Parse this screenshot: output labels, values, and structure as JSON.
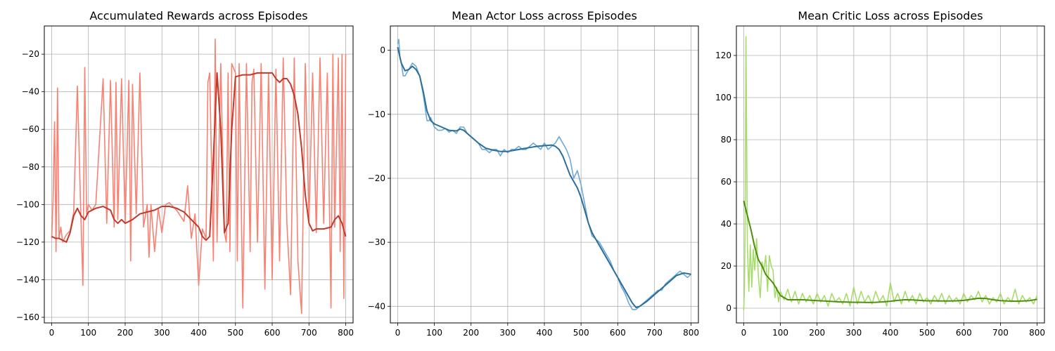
{
  "chart_data": [
    {
      "type": "line",
      "title": "Accumulated Rewards across Episodes",
      "xlabel": "",
      "ylabel": "",
      "xlim": [
        -20,
        820
      ],
      "ylim": [
        -163,
        -5
      ],
      "xticks": [
        0,
        100,
        200,
        300,
        400,
        500,
        600,
        700,
        800
      ],
      "yticks": [
        -160,
        -140,
        -120,
        -100,
        -80,
        -60,
        -40,
        -20
      ],
      "grid": true,
      "raw_color": "#fa8072",
      "smooth_color": "#c0392b",
      "series": [
        {
          "role": "raw",
          "x": [
            0,
            4,
            8,
            12,
            16,
            20,
            25,
            30,
            40,
            50,
            60,
            70,
            80,
            85,
            90,
            95,
            100,
            110,
            120,
            140,
            150,
            160,
            170,
            175,
            180,
            190,
            200,
            210,
            215,
            220,
            230,
            240,
            250,
            260,
            265,
            270,
            280,
            290,
            300,
            310,
            320,
            340,
            360,
            370,
            380,
            390,
            400,
            410,
            420,
            425,
            430,
            440,
            445,
            450,
            460,
            470,
            475,
            480,
            485,
            490,
            500,
            505,
            510,
            520,
            530,
            540,
            545,
            550,
            560,
            570,
            580,
            590,
            600,
            610,
            620,
            630,
            640,
            650,
            660,
            670,
            680,
            690,
            700,
            710,
            720,
            730,
            740,
            750,
            760,
            765,
            770,
            780,
            785,
            790,
            795,
            800
          ],
          "y": [
            -118,
            -97,
            -56,
            -125,
            -38,
            -118,
            -112,
            -120,
            -116,
            -114,
            -104,
            -37,
            -110,
            -143,
            -27,
            -105,
            -100,
            -103,
            -100,
            -33,
            -110,
            -34,
            -112,
            -35,
            -108,
            -33,
            -110,
            -34,
            -130,
            -36,
            -105,
            -30,
            -112,
            -100,
            -128,
            -100,
            -125,
            -102,
            -115,
            -100,
            -99,
            -103,
            -109,
            -90,
            -118,
            -105,
            -143,
            -113,
            -118,
            -35,
            -30,
            -130,
            -12,
            -120,
            -25,
            -115,
            -120,
            -30,
            -125,
            -25,
            -30,
            -130,
            -25,
            -155,
            -25,
            -125,
            -35,
            -28,
            -120,
            -25,
            -145,
            -30,
            -140,
            -28,
            -130,
            -22,
            -110,
            -148,
            -22,
            -130,
            -158,
            -25,
            -110,
            -30,
            -115,
            -22,
            -110,
            -30,
            -155,
            -20,
            -112,
            -22,
            -125,
            -20,
            -150,
            -20
          ]
        },
        {
          "role": "smoothed",
          "x": [
            0,
            10,
            20,
            30,
            40,
            50,
            60,
            70,
            80,
            90,
            100,
            120,
            140,
            160,
            170,
            180,
            190,
            200,
            220,
            240,
            260,
            280,
            300,
            320,
            340,
            360,
            380,
            400,
            410,
            420,
            430,
            440,
            450,
            460,
            470,
            480,
            490,
            500,
            520,
            540,
            560,
            580,
            600,
            610,
            620,
            630,
            640,
            650,
            660,
            670,
            680,
            690,
            700,
            710,
            720,
            740,
            760,
            770,
            780,
            790,
            800
          ],
          "y": [
            -117,
            -118,
            -118,
            -119,
            -120,
            -115,
            -106,
            -102,
            -106,
            -108,
            -104,
            -102,
            -101,
            -103,
            -108,
            -110,
            -108,
            -110,
            -108,
            -105,
            -104,
            -103,
            -101,
            -101,
            -102,
            -104,
            -108,
            -112,
            -117,
            -119,
            -117,
            -75,
            -30,
            -60,
            -115,
            -110,
            -60,
            -32,
            -31,
            -31,
            -30,
            -30,
            -30,
            -33,
            -35,
            -33,
            -33,
            -36,
            -42,
            -52,
            -70,
            -95,
            -110,
            -114,
            -113,
            -113,
            -112,
            -108,
            -106,
            -110,
            -117
          ]
        }
      ]
    },
    {
      "type": "line",
      "title": "Mean Actor Loss across Episodes",
      "xlabel": "",
      "ylabel": "",
      "xlim": [
        -20,
        820
      ],
      "ylim": [
        -42.6,
        3.8
      ],
      "xticks": [
        0,
        100,
        200,
        300,
        400,
        500,
        600,
        700,
        800
      ],
      "yticks": [
        -40,
        -30,
        -20,
        -10,
        0
      ],
      "grid": true,
      "raw_color": "#6ea8d4",
      "smooth_color": "#2b6f99",
      "series": [
        {
          "role": "raw",
          "x": [
            0,
            3,
            6,
            10,
            15,
            20,
            30,
            40,
            50,
            60,
            70,
            75,
            80,
            85,
            90,
            100,
            110,
            120,
            130,
            140,
            150,
            160,
            170,
            180,
            190,
            200,
            210,
            220,
            230,
            240,
            250,
            260,
            270,
            280,
            290,
            300,
            310,
            320,
            330,
            340,
            350,
            360,
            370,
            380,
            390,
            400,
            410,
            420,
            430,
            440,
            450,
            460,
            470,
            480,
            490,
            500,
            510,
            520,
            530,
            540,
            550,
            560,
            570,
            580,
            590,
            600,
            610,
            620,
            630,
            640,
            650,
            660,
            670,
            680,
            690,
            700,
            710,
            720,
            730,
            740,
            750,
            760,
            770,
            780,
            790,
            800
          ],
          "y": [
            1,
            1.7,
            -1,
            -2,
            -4,
            -4,
            -3,
            -2,
            -2.5,
            -4,
            -7,
            -9,
            -11,
            -11,
            -10.5,
            -12,
            -12.5,
            -12.5,
            -12.2,
            -12.8,
            -12.5,
            -13,
            -12,
            -12,
            -13,
            -13.5,
            -14,
            -14.5,
            -15.5,
            -15.5,
            -16,
            -15.5,
            -15.5,
            -16.5,
            -15.5,
            -16,
            -15.5,
            -15.5,
            -15,
            -15.5,
            -15.5,
            -15,
            -14.5,
            -15,
            -15.5,
            -14.5,
            -15.5,
            -15,
            -14.5,
            -13.5,
            -14.5,
            -15.5,
            -17,
            -20,
            -18.8,
            -21,
            -24,
            -27,
            -29,
            -29.5,
            -30,
            -31,
            -32,
            -33,
            -34.5,
            -35.5,
            -37,
            -38,
            -39.5,
            -40.5,
            -40.5,
            -40,
            -39.5,
            -39,
            -38.5,
            -38,
            -37.5,
            -37.5,
            -36.5,
            -36,
            -35.5,
            -35,
            -34.5,
            -35,
            -35.5,
            -35
          ]
        },
        {
          "role": "smoothed",
          "x": [
            0,
            10,
            20,
            30,
            40,
            50,
            60,
            70,
            80,
            90,
            100,
            120,
            140,
            160,
            170,
            180,
            200,
            220,
            240,
            260,
            280,
            300,
            320,
            340,
            360,
            380,
            400,
            420,
            430,
            440,
            450,
            460,
            470,
            480,
            490,
            500,
            510,
            520,
            530,
            540,
            560,
            580,
            600,
            620,
            640,
            650,
            660,
            680,
            700,
            720,
            740,
            760,
            780,
            800
          ],
          "y": [
            0.5,
            -2,
            -3.2,
            -3,
            -2.5,
            -3,
            -4,
            -6.5,
            -9.5,
            -11,
            -11.5,
            -12,
            -12.5,
            -12.6,
            -12.3,
            -12.5,
            -13.5,
            -14.5,
            -15.3,
            -15.6,
            -15.8,
            -15.8,
            -15.6,
            -15.4,
            -15.2,
            -15.0,
            -14.9,
            -14.8,
            -15.0,
            -15.5,
            -16.5,
            -18,
            -19.5,
            -20.5,
            -21.5,
            -23,
            -25,
            -27,
            -28.5,
            -29.5,
            -31.5,
            -33.5,
            -35.5,
            -37.5,
            -39.5,
            -40.2,
            -40,
            -39.2,
            -38.2,
            -37.2,
            -36.2,
            -35.2,
            -34.8,
            -35
          ]
        }
      ]
    },
    {
      "type": "line",
      "title": "Mean Critic Loss across Episodes",
      "xlabel": "",
      "ylabel": "",
      "xlim": [
        -20,
        820
      ],
      "ylim": [
        -7,
        134
      ],
      "xticks": [
        0,
        100,
        200,
        300,
        400,
        500,
        600,
        700,
        800
      ],
      "yticks": [
        0,
        20,
        40,
        60,
        80,
        100,
        120
      ],
      "grid": true,
      "raw_color": "#a8dc6a",
      "smooth_color": "#4d8f0e",
      "series": [
        {
          "role": "raw",
          "x": [
            0,
            2,
            4,
            6,
            8,
            10,
            14,
            18,
            22,
            26,
            30,
            35,
            40,
            45,
            50,
            55,
            60,
            65,
            70,
            75,
            80,
            85,
            90,
            95,
            100,
            110,
            120,
            130,
            140,
            150,
            160,
            170,
            180,
            190,
            200,
            210,
            220,
            230,
            240,
            250,
            260,
            270,
            280,
            290,
            300,
            310,
            320,
            330,
            340,
            350,
            360,
            370,
            380,
            390,
            400,
            410,
            420,
            430,
            440,
            450,
            460,
            470,
            480,
            490,
            500,
            510,
            520,
            530,
            540,
            550,
            560,
            570,
            580,
            590,
            600,
            610,
            620,
            630,
            640,
            650,
            660,
            670,
            680,
            690,
            700,
            710,
            720,
            730,
            740,
            750,
            760,
            770,
            780,
            790,
            800
          ],
          "y": [
            -1,
            10,
            40,
            129,
            80,
            30,
            8,
            30,
            10,
            28,
            18,
            33,
            15,
            5,
            22,
            18,
            25,
            8,
            25,
            20,
            18,
            5,
            10,
            3,
            8,
            4,
            9,
            3,
            8,
            2,
            7,
            3,
            6,
            2,
            7,
            3,
            6,
            1,
            7,
            3,
            5,
            2,
            7,
            1,
            10,
            2,
            8,
            3,
            6,
            2,
            8,
            3,
            6,
            1,
            12,
            3,
            7,
            2,
            8,
            3,
            6,
            2,
            7,
            3,
            5,
            2,
            6,
            3,
            7,
            2,
            6,
            3,
            5,
            2,
            7,
            3,
            6,
            4,
            8,
            3,
            6,
            2,
            5,
            3,
            7,
            2,
            5,
            3,
            9,
            2,
            6,
            3,
            5,
            2,
            6
          ]
        },
        {
          "role": "smoothed",
          "x": [
            0,
            10,
            20,
            30,
            40,
            50,
            60,
            70,
            80,
            90,
            100,
            110,
            120,
            140,
            160,
            180,
            200,
            220,
            240,
            260,
            280,
            300,
            320,
            340,
            360,
            380,
            400,
            420,
            440,
            460,
            480,
            500,
            520,
            540,
            560,
            580,
            600,
            620,
            640,
            660,
            680,
            700,
            720,
            740,
            760,
            780,
            800
          ],
          "y": [
            51,
            44,
            37,
            29,
            23,
            20,
            16,
            14,
            12,
            9,
            6,
            5,
            4,
            4,
            4,
            3.8,
            3.6,
            3.4,
            3.2,
            3.0,
            2.9,
            2.8,
            2.8,
            2.7,
            2.8,
            3.0,
            3.3,
            3.7,
            4.0,
            3.9,
            3.7,
            3.5,
            3.5,
            3.4,
            3.4,
            3.5,
            3.7,
            4.2,
            4.7,
            4.6,
            4.0,
            3.6,
            3.4,
            3.3,
            3.4,
            3.6,
            4.2
          ]
        }
      ]
    }
  ]
}
